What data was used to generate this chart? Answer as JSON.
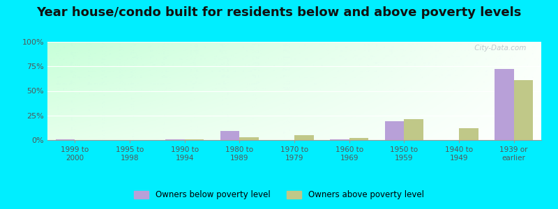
{
  "title": "Year house/condo built for residents below and above poverty levels",
  "categories": [
    "1999 to\n2000",
    "1995 to\n1998",
    "1990 to\n1994",
    "1980 to\n1989",
    "1970 to\n1979",
    "1960 to\n1969",
    "1950 to\n1959",
    "1940 to\n1949",
    "1939 or\nearlier"
  ],
  "below_poverty": [
    0.5,
    0,
    1,
    9,
    0,
    1,
    19,
    0,
    72
  ],
  "above_poverty": [
    0,
    0,
    1,
    3,
    5,
    2,
    21,
    12,
    61
  ],
  "ylim": [
    0,
    100
  ],
  "yticks": [
    0,
    25,
    50,
    75,
    100
  ],
  "ytick_labels": [
    "0%",
    "25%",
    "50%",
    "75%",
    "100%"
  ],
  "bar_width": 0.35,
  "below_color": "#b8a0d8",
  "above_color": "#c0c888",
  "outer_bg": "#00eeff",
  "legend_below": "Owners below poverty level",
  "legend_above": "Owners above poverty level",
  "title_fontsize": 13,
  "watermark": " City-Data.com"
}
